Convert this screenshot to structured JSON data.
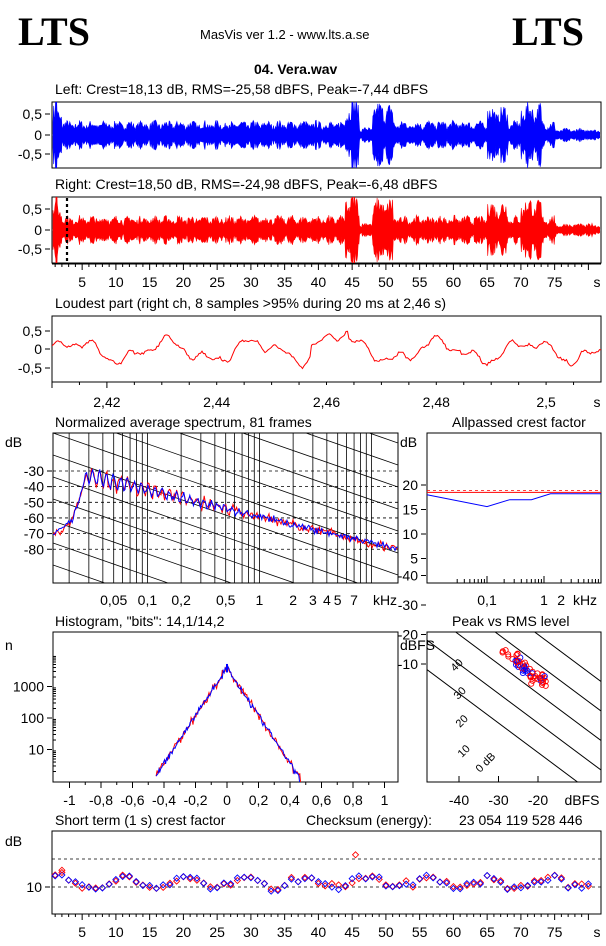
{
  "header": {
    "logo_left": "LTS",
    "logo_right": "LTS",
    "app_title": "MasVis ver 1.2 - www.lts.a.se",
    "file_name": "04. Vera.wav"
  },
  "colors": {
    "left": "#0000ff",
    "right": "#ff0000",
    "black": "#000000"
  },
  "chart_data": [
    {
      "id": "left-waveform",
      "type": "area",
      "title": "Left: Crest=18,13 dB, RMS=-25,58 dBFS, Peak=-7,44 dBFS",
      "yticks": [
        "0,5",
        "0",
        "-0,5"
      ],
      "ylim": [
        -1,
        1
      ],
      "series": [
        {
          "color": "#0000ff"
        }
      ]
    },
    {
      "id": "right-waveform",
      "type": "area",
      "title": "Right: Crest=18,50 dB, RMS=-24,98 dBFS, Peak=-6,48 dBFS",
      "yticks": [
        "0,5",
        "0",
        "-0,5"
      ],
      "ylim": [
        -1,
        1
      ],
      "xticks": [
        "5",
        "10",
        "15",
        "20",
        "25",
        "30",
        "35",
        "40",
        "45",
        "50",
        "55",
        "60",
        "65",
        "70",
        "75",
        "s"
      ],
      "marker_at_s": 2.46,
      "series": [
        {
          "color": "#ff0000"
        }
      ]
    },
    {
      "id": "loudest-part",
      "type": "line",
      "title": "Loudest part (right ch, 8 samples >95% during 20 ms at 2,46 s)",
      "yticks": [
        "0,5",
        "0",
        "-0,5"
      ],
      "xticks": [
        "2,42",
        "2,44",
        "2,46",
        "2,48",
        "2,5",
        "s"
      ],
      "xlim": [
        2.41,
        2.51
      ],
      "series": [
        {
          "color": "#ff0000"
        }
      ]
    },
    {
      "id": "spectrum",
      "type": "line",
      "title": "Normalized average spectrum, 81 frames",
      "ylabel": "dB",
      "yticks": [
        "-30",
        "-40",
        "-50",
        "-60",
        "-70",
        "-80"
      ],
      "xticks": [
        "0,05",
        "0,1",
        "0,2",
        "0,5",
        "1",
        "2",
        "3",
        "4",
        "5",
        "7",
        "kHz"
      ],
      "x_scale": "log",
      "series": [
        {
          "color": "#ff0000"
        },
        {
          "color": "#0000ff"
        }
      ]
    },
    {
      "id": "allpassed-crest",
      "type": "line",
      "title": "Allpassed crest factor",
      "ylabel": "dB",
      "yticks": [
        "20",
        "15",
        "10",
        "5"
      ],
      "xticks": [
        "0,1",
        "1",
        "2",
        "kHz"
      ],
      "series": [
        {
          "color": "#ff0000",
          "value": 18.5
        },
        {
          "color": "#0000ff",
          "value": 17.5
        }
      ]
    },
    {
      "id": "histogram",
      "type": "line",
      "title": "Histogram, \"bits\": 14,1/14,2",
      "ylabel": "n",
      "yticks": [
        "1000",
        "100",
        "10"
      ],
      "xticks": [
        "-1",
        "-0,8",
        "-0,6",
        "-0,4",
        "-0,2",
        "0",
        "0,2",
        "0,4",
        "0,6",
        "0,8",
        "1"
      ],
      "y_scale": "log",
      "series": [
        {
          "color": "#ff0000"
        },
        {
          "color": "#0000ff"
        }
      ]
    },
    {
      "id": "peak-vs-rms",
      "type": "scatter",
      "title": "Peak vs RMS level",
      "ylabel": "dBFS",
      "xlabel": "dBFS",
      "yticks": [
        "-10",
        "-20",
        "-30",
        "-40"
      ],
      "xticks": [
        "-40",
        "-30",
        "-20"
      ],
      "crest_lines": [
        "40",
        "30",
        "20",
        "10",
        "0 dB"
      ],
      "series": [
        {
          "color": "#ff0000"
        },
        {
          "color": "#0000ff"
        }
      ]
    },
    {
      "id": "short-term-crest",
      "type": "scatter",
      "title": "Short term (1 s) crest factor",
      "ylabel": "dB",
      "yticks": [
        "10"
      ],
      "xticks": [
        "5",
        "10",
        "15",
        "20",
        "25",
        "30",
        "35",
        "40",
        "45",
        "50",
        "55",
        "60",
        "65",
        "70",
        "75",
        "s"
      ],
      "checksum_label": "Checksum (energy):",
      "checksum_value": "23 054 119 528 446",
      "series": [
        {
          "color": "#ff0000"
        },
        {
          "color": "#0000ff"
        }
      ]
    }
  ]
}
